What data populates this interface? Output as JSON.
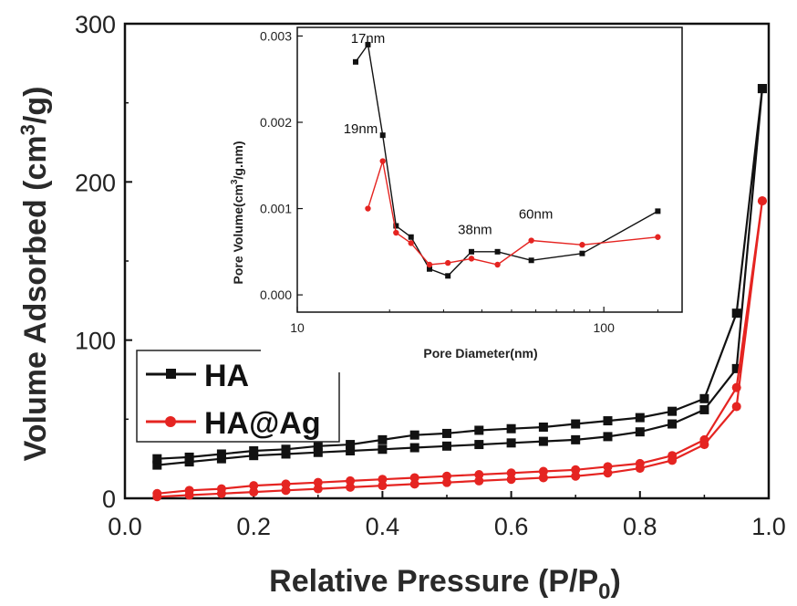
{
  "chart_data": [
    {
      "type": "line",
      "xlabel": "Relative Pressure (P/P",
      "xlabel_sub": "0",
      "xlabel_close": ")",
      "ylabel": "Volume Adsorbed (cm",
      "ylabel_sup": "3",
      "ylabel_close": "/g)",
      "xlim": [
        0.0,
        1.0
      ],
      "ylim": [
        0,
        300
      ],
      "xticks": [
        "0.0",
        "0.2",
        "0.4",
        "0.6",
        "0.8",
        "1.0"
      ],
      "yticks": [
        "0",
        "100",
        "200",
        "300"
      ],
      "legend_position": "lower-left",
      "series": [
        {
          "name": "HA",
          "color": "#111111",
          "marker": "square",
          "x": [
            0.05,
            0.1,
            0.15,
            0.2,
            0.25,
            0.3,
            0.35,
            0.4,
            0.45,
            0.5,
            0.55,
            0.6,
            0.65,
            0.7,
            0.75,
            0.8,
            0.85,
            0.9,
            0.95,
            0.99,
            0.99,
            0.95,
            0.9,
            0.85,
            0.8,
            0.75,
            0.7,
            0.65,
            0.6,
            0.55,
            0.5,
            0.45,
            0.4,
            0.35,
            0.3,
            0.25,
            0.2,
            0.15,
            0.1,
            0.05
          ],
          "values": [
            21,
            23,
            25,
            27,
            28,
            29,
            30,
            31,
            32,
            33,
            34,
            35,
            36,
            37,
            39,
            42,
            47,
            56,
            82,
            259,
            259,
            117,
            63,
            55,
            51,
            49,
            47,
            45,
            44,
            43,
            41,
            40,
            37,
            34,
            33,
            31,
            30,
            28,
            26,
            25
          ]
        },
        {
          "name": "HA@Ag",
          "color": "#e52421",
          "marker": "circle",
          "x": [
            0.05,
            0.1,
            0.15,
            0.2,
            0.25,
            0.3,
            0.35,
            0.4,
            0.45,
            0.5,
            0.55,
            0.6,
            0.65,
            0.7,
            0.75,
            0.8,
            0.85,
            0.9,
            0.95,
            0.99,
            0.99,
            0.95,
            0.9,
            0.85,
            0.8,
            0.75,
            0.7,
            0.65,
            0.6,
            0.55,
            0.5,
            0.45,
            0.4,
            0.35,
            0.3,
            0.25,
            0.2,
            0.15,
            0.1,
            0.05
          ],
          "values": [
            1,
            2,
            3,
            4,
            5,
            6,
            7,
            8,
            9,
            10,
            11,
            12,
            13,
            14,
            16,
            19,
            24,
            34,
            58,
            188,
            188,
            70,
            37,
            27,
            22,
            20,
            18,
            17,
            16,
            15,
            14,
            13,
            12,
            11,
            10,
            9,
            8,
            6,
            5,
            3
          ]
        }
      ]
    },
    {
      "type": "line",
      "inset": true,
      "xlabel": "Pore Diameter(nm)",
      "ylabel": "Pore Volume(cm",
      "ylabel_sup": "3",
      "ylabel_close": "/g.nm)",
      "xscale": "log",
      "xlim": [
        10,
        180
      ],
      "ylim": [
        -0.0002,
        0.0031
      ],
      "xticks": [
        "10",
        "100"
      ],
      "yticks": [
        "0.000",
        "0.001",
        "0.002",
        "0.003"
      ],
      "annotations": [
        {
          "text": "17nm",
          "x": 17,
          "y": 0.0029,
          "color": "#111111"
        },
        {
          "text": "19nm",
          "x": 17,
          "y": 0.0016,
          "color": "#111111"
        },
        {
          "text": "38nm",
          "x": 38,
          "y": 0.0006,
          "color": "#111111"
        },
        {
          "text": "60nm",
          "x": 60,
          "y": 0.0008,
          "color": "#111111"
        }
      ],
      "series": [
        {
          "name": "HA",
          "color": "#111111",
          "marker": "square",
          "x": [
            15.5,
            17,
            19,
            21,
            23.5,
            27,
            31,
            37,
            45,
            58,
            85,
            150
          ],
          "values": [
            0.0027,
            0.0029,
            0.00185,
            0.0008,
            0.00067,
            0.0003,
            0.00022,
            0.0005,
            0.0005,
            0.0004,
            0.00048,
            0.00097
          ]
        },
        {
          "name": "HA@Ag",
          "color": "#e52421",
          "marker": "circle",
          "x": [
            17,
            19,
            21,
            23.5,
            27,
            31,
            37,
            45,
            58,
            85,
            150
          ],
          "values": [
            0.001,
            0.00155,
            0.00072,
            0.0006,
            0.00035,
            0.00037,
            0.00042,
            0.00035,
            0.00063,
            0.00058,
            0.00067
          ]
        }
      ]
    }
  ]
}
